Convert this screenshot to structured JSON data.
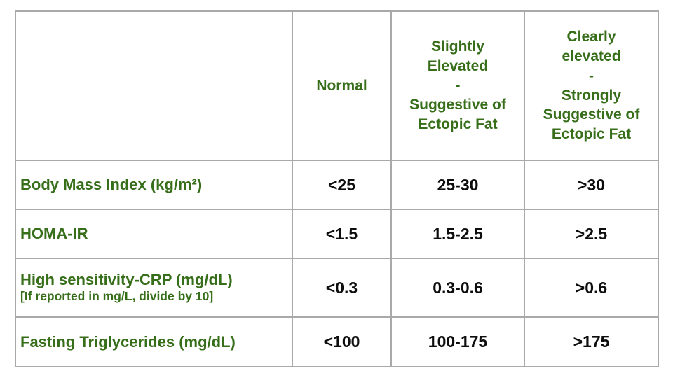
{
  "chart_data": {
    "type": "table",
    "title": "",
    "columns": [
      "",
      "Normal",
      "Slightly\nElevated\n-\nSuggestive of\nEctopic Fat",
      "Clearly\nelevated\n-\nStrongly\nSuggestive of\nEctopic Fat"
    ],
    "rows": [
      {
        "metric": "Body Mass Index (kg/m²)",
        "note": "",
        "normal": "<25",
        "slightly_elevated": "25-30",
        "clearly_elevated": ">30"
      },
      {
        "metric": "HOMA-IR",
        "note": "",
        "normal": "<1.5",
        "slightly_elevated": "1.5-2.5",
        "clearly_elevated": ">2.5"
      },
      {
        "metric": "High sensitivity-CRP (mg/dL)",
        "note": "[If reported in mg/L, divide by 10]",
        "normal": "<0.3",
        "slightly_elevated": "0.3-0.6",
        "clearly_elevated": ">0.6"
      },
      {
        "metric": "Fasting Triglycerides (mg/dL)",
        "note": "",
        "normal": "<100",
        "slightly_elevated": "100-175",
        "clearly_elevated": ">175"
      }
    ],
    "layout": {
      "grid": "on",
      "header_position": "top",
      "first_column": "row labels"
    },
    "colors": {
      "heading_text": "#376e1a",
      "value_text": "#0d0d0d",
      "border": "#a9a9a9",
      "background": "#ffffff"
    }
  }
}
